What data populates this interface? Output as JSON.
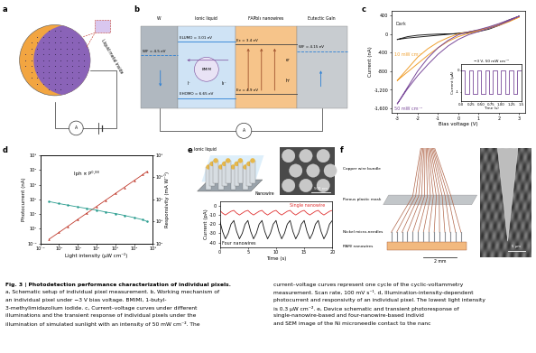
{
  "diagrams": {
    "a": {
      "letter": "a",
      "inset_label": "Liquid metal inside",
      "meter": "A"
    },
    "b": {
      "letter": "b",
      "columns": [
        "W",
        "Ionic liquid",
        "FAPbI₃ nanowires",
        "Eutectic GaIn"
      ],
      "levels": {
        "w": "WF = 4.5 eV",
        "lumo": "ELUMO = 3.01 eV",
        "homo": "EHOMO = 6.65 eV",
        "ec": "Ec = 3.4 eV",
        "ev": "Ev = 4.9 eV",
        "gain": "WF = 4.15 eV"
      },
      "species": [
        "BMIM",
        "I⁻",
        "I₃⁻"
      ],
      "carriers": [
        "e⁻",
        "h⁺"
      ],
      "meter": "A"
    },
    "e": {
      "letter": "e",
      "labels": [
        "Ionic liquid",
        "Nanowire"
      ],
      "scale": "500 nm"
    },
    "f": {
      "letter": "f",
      "labels": [
        "Copper wire bundle",
        "Porous plastic mask",
        "Nickel micro-needles",
        "PAM/ nanowires"
      ],
      "scale": "2 mm",
      "sem_scale": "5 μm"
    }
  },
  "chart_data": [
    {
      "type": "line",
      "panel": "c",
      "xlabel": "Bias voltage (V)",
      "ylabel": "Current (nA)",
      "x": [
        -3,
        -2.5,
        -2,
        -1.5,
        -1,
        -0.5,
        0,
        0.5,
        1,
        1.5,
        2,
        2.5,
        3,
        2.5,
        2,
        1.5,
        1,
        0.5,
        0,
        -0.5,
        -1,
        -1.5,
        -2,
        -2.5,
        -3
      ],
      "series": [
        {
          "name": "Dark",
          "color": "#222222",
          "values": [
            -120,
            -60,
            -30,
            -15,
            -5,
            0,
            5,
            20,
            50,
            100,
            180,
            280,
            380,
            300,
            200,
            130,
            80,
            40,
            10,
            -10,
            -30,
            -50,
            -70,
            -90,
            -120
          ]
        },
        {
          "name": "10 mW cm⁻²",
          "color": "#f0a030",
          "values": [
            -1000,
            -750,
            -500,
            -320,
            -180,
            -80,
            0,
            40,
            80,
            130,
            200,
            280,
            360,
            260,
            180,
            120,
            60,
            10,
            -60,
            -160,
            -300,
            -460,
            -640,
            -820,
            -1000
          ]
        },
        {
          "name": "50 mW cm⁻²",
          "color": "#7a4a9a",
          "values": [
            -1500,
            -1150,
            -800,
            -520,
            -300,
            -140,
            -20,
            40,
            90,
            150,
            220,
            300,
            380,
            280,
            190,
            120,
            50,
            -20,
            -120,
            -260,
            -440,
            -660,
            -900,
            -1180,
            -1500
          ]
        }
      ],
      "xlim": [
        -3.3,
        3.3
      ],
      "xticks": [
        -3,
        -2,
        -1,
        0,
        1,
        2,
        3
      ],
      "ylim": [
        -1700,
        500
      ],
      "yticks": [
        400,
        0,
        -400,
        -800,
        {
          "value": -1200,
          "label": "-1,200"
        },
        {
          "value": -1600,
          "label": "-1,600"
        }
      ],
      "inset": {
        "type": "line",
        "title": "−3 V, 50 mW cm⁻²",
        "xlabel": "Time (s)",
        "ylabel": "Current (μA)",
        "color": "#7a4a9a",
        "x": [
          0,
          0.05,
          0.1,
          0.15,
          0.2,
          0.25,
          0.3,
          0.35,
          0.4,
          0.45,
          0.5,
          0.55,
          0.6,
          0.65,
          0.7,
          0.75,
          0.8,
          0.85,
          0.9,
          0.95,
          1.0,
          1.05,
          1.1,
          1.15,
          1.2,
          1.25,
          1.3,
          1.35,
          1.4,
          1.45,
          1.5
        ],
        "values": [
          0,
          0,
          -1.1,
          -1.1,
          0,
          0,
          -1.1,
          -1.1,
          0,
          0,
          -1.1,
          -1.1,
          0,
          0,
          -1.1,
          -1.1,
          0,
          0,
          -1.1,
          -1.1,
          0,
          0,
          -1.1,
          -1.1,
          0,
          0,
          -1.1,
          -1.1,
          0,
          0,
          -1.1
        ],
        "xlim": [
          0,
          1.5
        ],
        "xticks": [
          {
            "value": 0,
            "label": "0.0"
          },
          0.25,
          {
            "value": 0.5,
            "label": "0.50"
          },
          0.75,
          {
            "value": 1,
            "label": "1.00"
          },
          1.25,
          1.5
        ],
        "ylim": [
          -1.4,
          0.3
        ],
        "yticks": [
          0,
          -1
        ]
      }
    },
    {
      "type": "line",
      "panel": "d",
      "log": true,
      "xlabel": "Light intensity (μW cm⁻²)",
      "ylabel": "Photocurrent (nA)",
      "y2label": "Responsivity (mA W⁻¹)",
      "annotation": "Iph ∝ P⁰·⁸⁸",
      "x": [
        0.3,
        1,
        3,
        10,
        30,
        100,
        300,
        1000,
        3000,
        10000,
        30000,
        50000
      ],
      "series": [
        {
          "color": "#c0392b",
          "marker": "triangle",
          "values": [
            0.2,
            0.57,
            1.5,
            4.4,
            11.5,
            33,
            87,
            250,
            660,
            1900,
            5000,
            8000
          ]
        },
        {
          "color": "#2a9d8f",
          "marker": "circle",
          "axis": "y2",
          "values": [
            8000,
            6500,
            5500,
            4600,
            3900,
            3300,
            2700,
            2300,
            1900,
            1500,
            1200,
            1000
          ]
        }
      ],
      "xlim": [
        0.1,
        100000
      ],
      "xticks": [
        {
          "value": 0.1,
          "label": "10⁻¹"
        },
        {
          "value": 1,
          "label": "10⁰"
        },
        {
          "value": 10,
          "label": "10¹"
        },
        {
          "value": 100,
          "label": "10²"
        },
        {
          "value": 1000,
          "label": "10³"
        },
        {
          "value": 10000,
          "label": "10⁴"
        },
        {
          "value": 100000,
          "label": "10⁵"
        }
      ],
      "ylim": [
        0.1,
        100000
      ],
      "yticks": [
        {
          "value": 0.1,
          "label": "10⁻¹"
        },
        {
          "value": 1,
          "label": "10⁰"
        },
        {
          "value": 10,
          "label": "10¹"
        },
        {
          "value": 100,
          "label": "10²"
        },
        {
          "value": 1000,
          "label": "10³"
        },
        {
          "value": 10000,
          "label": "10⁴"
        },
        {
          "value": 100000,
          "label": "10⁵"
        }
      ],
      "y2lim": [
        100,
        1000000
      ],
      "y2ticks": [
        {
          "value": 100,
          "label": "10²"
        },
        {
          "value": 1000,
          "label": "10³"
        },
        {
          "value": 10000,
          "label": "10⁴"
        },
        {
          "value": 100000,
          "label": "10⁵"
        },
        {
          "value": 1000000,
          "label": "10⁶"
        }
      ]
    },
    {
      "type": "line",
      "xlabel": "Time (s)",
      "ylabel": "Current (pA)",
      "x": [
        0,
        0.5,
        1,
        1.5,
        2,
        2.5,
        3,
        3.5,
        4,
        4.5,
        5,
        5.5,
        6,
        6.5,
        7,
        7.5,
        8,
        8.5,
        9,
        9.5,
        10,
        10.5,
        11,
        11.5,
        12,
        12.5,
        13,
        13.5,
        14,
        14.5,
        15,
        15.5,
        16,
        16.5,
        17,
        17.5,
        18,
        18.5,
        19,
        19.5,
        20
      ],
      "series": [
        {
          "name": "Single nanowire",
          "color": "#e03030",
          "values": [
            -5,
            -8,
            -10,
            -8,
            -6,
            -5,
            -8,
            -10,
            -8,
            -6,
            -5,
            -8,
            -10,
            -8,
            -6,
            -5,
            -8,
            -10,
            -8,
            -6,
            -5,
            -8,
            -10,
            -8,
            -6,
            -5,
            -8,
            -10,
            -8,
            -6,
            -5,
            -8,
            -10,
            -8,
            -6,
            -5,
            -8,
            -10,
            -8,
            -6,
            -5
          ]
        },
        {
          "name": "Four nanowires",
          "color": "#111111",
          "values": [
            -16,
            -28,
            -36,
            -30,
            -20,
            -16,
            -28,
            -36,
            -30,
            -20,
            -16,
            -28,
            -36,
            -30,
            -20,
            -16,
            -28,
            -36,
            -30,
            -20,
            -16,
            -28,
            -36,
            -30,
            -20,
            -16,
            -28,
            -36,
            -30,
            -20,
            -16,
            -28,
            -36,
            -30,
            -20,
            -16,
            -28,
            -36,
            -30,
            -20,
            -16
          ]
        }
      ],
      "xlim": [
        0,
        20
      ],
      "xticks": [
        0,
        5,
        10,
        15,
        20
      ],
      "ylim": [
        -45,
        5
      ],
      "yticks": [
        0,
        -10,
        -20,
        -30,
        -40
      ]
    }
  ],
  "caption": {
    "title": "Fig. 3 | Photodetection performance characterization of individual pixels.",
    "left": [
      "a, Schematic setup of individual pixel measurement. b, Working mechanism of",
      "an individual pixel under −3 V bias voltage. BMIMI, 1-butyl-",
      "3-methylimidazolium iodide. c, Current–voltage curves under different",
      "illuminations and the transient response of individual pixels under the",
      "illumination of simulated sunlight with an intensity of 50 mW cm⁻². The"
    ],
    "right": [
      "current–voltage curves represent one cycle of the cyclic-voltammetry",
      "measurement. Scan rate, 100 mV s⁻¹. d, Illumination-intensity-dependent",
      "photocurrent and responsivity of an individual pixel. The lowest light intensity",
      "is 0.3 μW cm⁻². e, Device schematic and transient photoresponse of",
      "single-nanowire-based and four-nanowire-based individ",
      "and SEM image of the Ni microneedle contact to the nanc"
    ]
  }
}
